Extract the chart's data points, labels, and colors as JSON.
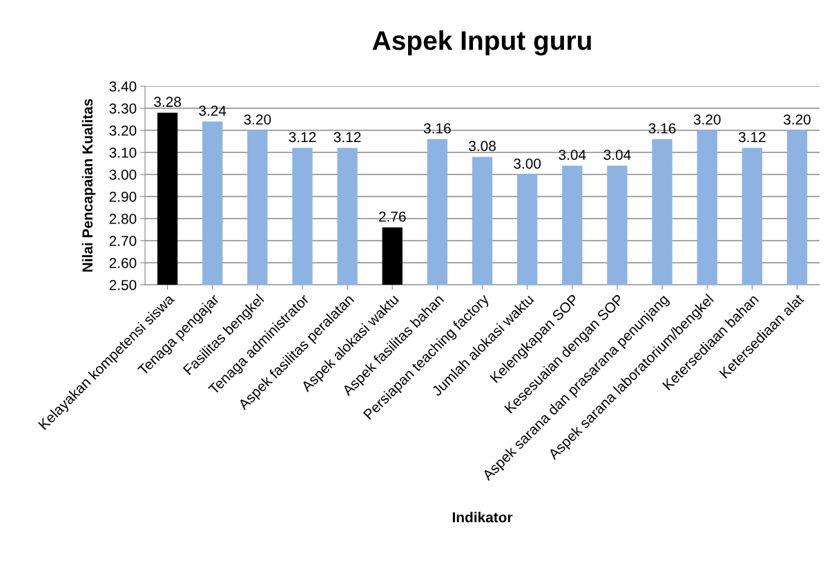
{
  "chart_data": {
    "type": "bar",
    "title": "Aspek Input guru",
    "xlabel": "Indikator",
    "ylabel": "Nilai Pencapaian Kualitas",
    "categories": [
      "Kelayakan kompetensi siswa",
      "Tenaga pengajar",
      "Fasilitas bengkel",
      "Tenaga administrator",
      "Aspek fasilitas peralatan",
      "Aspek alokasi waktu",
      "Aspek fasilitas bahan",
      "Persiapan teaching factory",
      "Jumlah alokasi waktu",
      "Kelengkapan SOP",
      "Kesesuaian dengan SOP",
      "Aspek sarana dan prasarana penunjang",
      "Aspek sarana laboratorium/bengkel",
      "Ketersediaan bahan",
      "Ketersediaan alat"
    ],
    "values": [
      3.28,
      3.24,
      3.2,
      3.12,
      3.12,
      2.76,
      3.16,
      3.08,
      3.0,
      3.04,
      3.04,
      3.16,
      3.2,
      3.12,
      3.2
    ],
    "value_labels": [
      "3.28",
      "3.24",
      "3.20",
      "3.12",
      "3.12",
      "2.76",
      "3.16",
      "3.08",
      "3.00",
      "3.04",
      "3.04",
      "3.16",
      "3.20",
      "3.12",
      "3.20"
    ],
    "colors": [
      "#000000",
      "#8db3e2",
      "#8db3e2",
      "#8db3e2",
      "#8db3e2",
      "#000000",
      "#8db3e2",
      "#8db3e2",
      "#8db3e2",
      "#8db3e2",
      "#8db3e2",
      "#8db3e2",
      "#8db3e2",
      "#8db3e2",
      "#8db3e2"
    ],
    "ylim": [
      2.5,
      3.4
    ],
    "yticks": [
      {
        "value": 2.5,
        "label": "2.50"
      },
      {
        "value": 2.6,
        "label": "2.60"
      },
      {
        "value": 2.7,
        "label": "2.70"
      },
      {
        "value": 2.8,
        "label": "2.80"
      },
      {
        "value": 2.9,
        "label": "2.90"
      },
      {
        "value": 3.0,
        "label": "3.00"
      },
      {
        "value": 3.1,
        "label": "3.10"
      },
      {
        "value": 3.2,
        "label": "3.20"
      },
      {
        "value": 3.3,
        "label": "3.30"
      },
      {
        "value": 3.4,
        "label": "3.40"
      }
    ],
    "grid": "y"
  }
}
